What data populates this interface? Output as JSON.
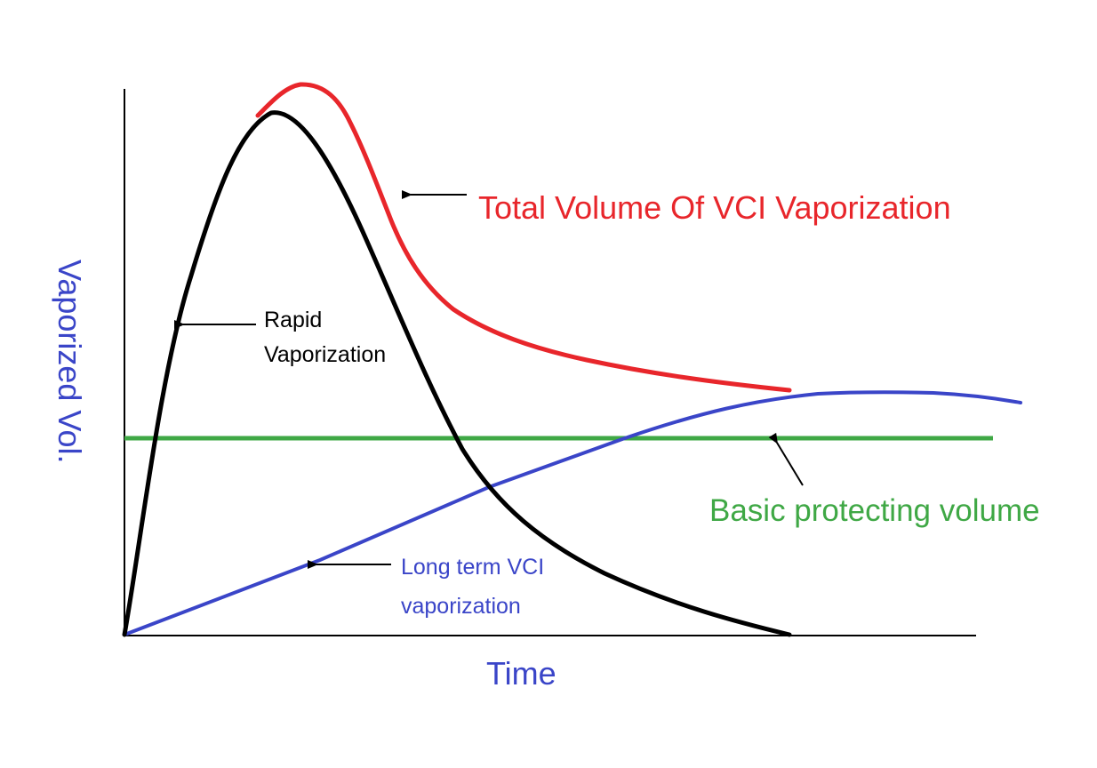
{
  "diagram": {
    "x_axis_label": "Time",
    "y_axis_label": "Vaporized Vol.",
    "curves": {
      "rapid": {
        "label_line1": "Rapid",
        "label_line2": "Vaporization",
        "color": "#000000"
      },
      "total": {
        "label": "Total Volume Of VCI Vaporization",
        "color": "#e8262b"
      },
      "long_term": {
        "label_line1": "Long term VCI",
        "label_line2": "vaporization",
        "color": "#3a45c8"
      },
      "basic": {
        "label": "Basic protecting volume",
        "color": "#3fa845"
      }
    },
    "axis_color": "#000000",
    "y_label_color": "#3a45c8",
    "x_label_color": "#3a45c8"
  }
}
